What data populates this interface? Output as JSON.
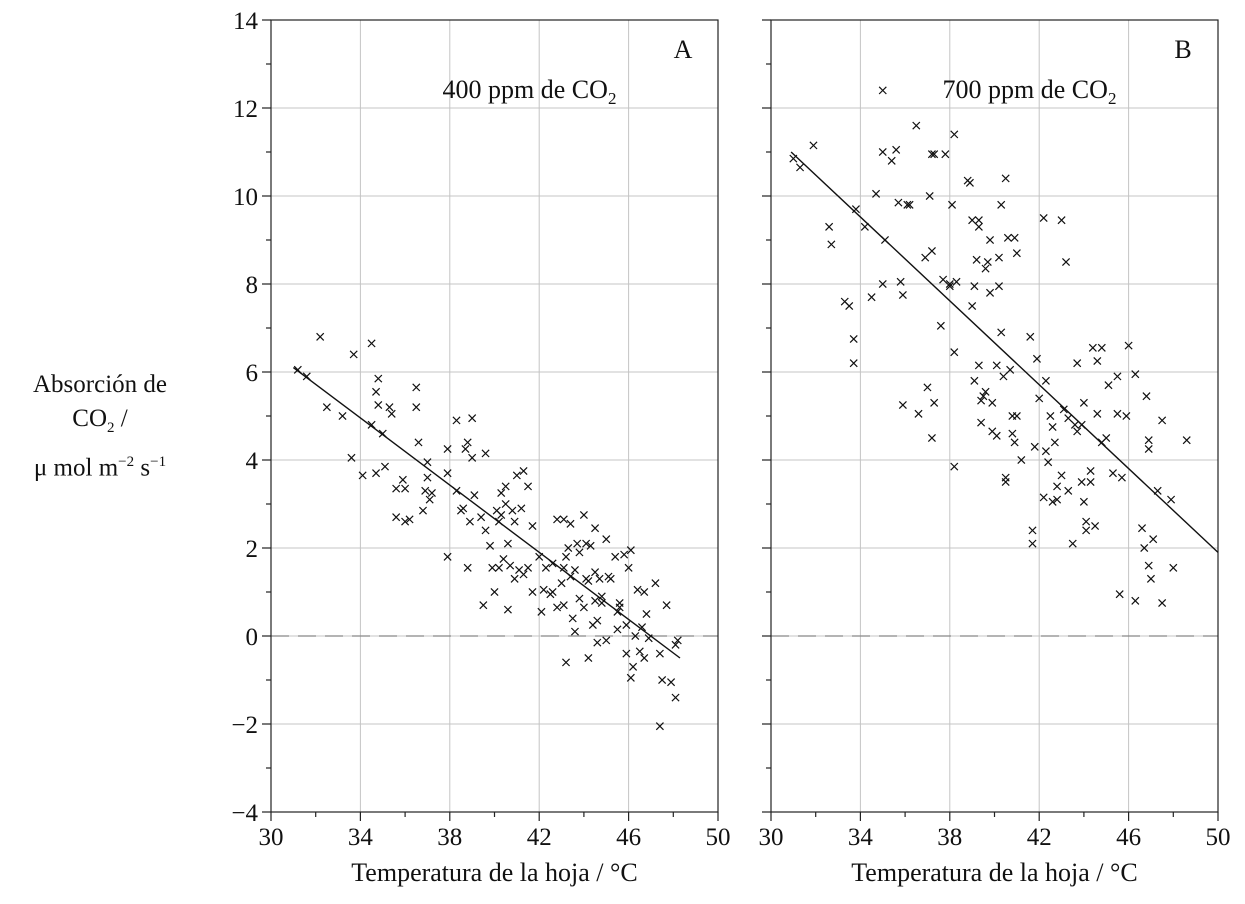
{
  "y_axis_label": {
    "line1": "Absorción de",
    "line2_prefix": "CO",
    "line2_sub": "2",
    "line2_suffix": " /",
    "line3_prefix": "μ mol m",
    "line3_sup1": "−2",
    "line3_mid": " s",
    "line3_sup2": "−1"
  },
  "chart_data": [
    {
      "type": "scatter",
      "panel": "A",
      "annotation": "400 ppm de CO2",
      "annotation_prefix": "400 ppm de CO",
      "annotation_sub": "2",
      "xlabel": "Temperatura de la hoja / °C",
      "ylabel": "Absorción de CO2 / μ mol m−2 s−1",
      "xlim": [
        30,
        50
      ],
      "ylim": [
        -4,
        14
      ],
      "xticks": [
        30,
        34,
        38,
        42,
        46,
        50
      ],
      "yticks": [
        -4,
        -2,
        0,
        2,
        4,
        6,
        8,
        10,
        12,
        14
      ],
      "xtick_labels": [
        "30",
        "34",
        "38",
        "42",
        "46",
        "50"
      ],
      "ytick_labels": [
        "−4",
        "−2",
        "0",
        "2",
        "4",
        "6",
        "8",
        "10",
        "12",
        "14"
      ],
      "grid": true,
      "zero_line": 0,
      "marker": "x",
      "trend_line": {
        "x": [
          31.0,
          48.3
        ],
        "y": [
          6.1,
          -0.5
        ]
      },
      "points": [
        [
          31.2,
          6.05
        ],
        [
          31.6,
          5.9
        ],
        [
          32.2,
          6.8
        ],
        [
          32.5,
          5.2
        ],
        [
          33.2,
          5.0
        ],
        [
          33.7,
          6.4
        ],
        [
          33.6,
          4.05
        ],
        [
          34.1,
          3.65
        ],
        [
          34.5,
          6.65
        ],
        [
          34.5,
          4.8
        ],
        [
          34.8,
          5.85
        ],
        [
          34.7,
          5.55
        ],
        [
          34.8,
          5.25
        ],
        [
          35.0,
          4.6
        ],
        [
          35.1,
          3.85
        ],
        [
          35.3,
          5.2
        ],
        [
          35.4,
          5.05
        ],
        [
          34.7,
          3.7
        ],
        [
          35.6,
          2.7
        ],
        [
          35.6,
          3.35
        ],
        [
          35.9,
          3.55
        ],
        [
          36.0,
          2.6
        ],
        [
          36.0,
          3.35
        ],
        [
          36.2,
          2.65
        ],
        [
          36.5,
          5.65
        ],
        [
          36.5,
          5.2
        ],
        [
          36.6,
          4.4
        ],
        [
          36.8,
          2.85
        ],
        [
          37.0,
          3.95
        ],
        [
          37.0,
          3.6
        ],
        [
          37.1,
          3.1
        ],
        [
          37.2,
          3.25
        ],
        [
          37.9,
          4.25
        ],
        [
          37.9,
          3.7
        ],
        [
          37.9,
          1.8
        ],
        [
          38.3,
          4.9
        ],
        [
          38.3,
          3.3
        ],
        [
          38.5,
          2.85
        ],
        [
          38.7,
          4.25
        ],
        [
          38.8,
          4.4
        ],
        [
          38.9,
          2.6
        ],
        [
          38.8,
          1.55
        ],
        [
          39.0,
          4.95
        ],
        [
          39.0,
          4.05
        ],
        [
          39.1,
          3.2
        ],
        [
          39.4,
          2.7
        ],
        [
          39.6,
          4.15
        ],
        [
          39.6,
          2.4
        ],
        [
          39.5,
          0.7
        ],
        [
          39.8,
          2.05
        ],
        [
          39.9,
          1.55
        ],
        [
          40.0,
          1.0
        ],
        [
          40.1,
          2.85
        ],
        [
          40.2,
          1.55
        ],
        [
          40.2,
          2.6
        ],
        [
          40.3,
          3.25
        ],
        [
          40.4,
          1.75
        ],
        [
          40.5,
          3.0
        ],
        [
          40.5,
          3.4
        ],
        [
          40.6,
          2.1
        ],
        [
          40.6,
          0.6
        ],
        [
          40.7,
          1.6
        ],
        [
          40.8,
          2.85
        ],
        [
          40.9,
          1.3
        ],
        [
          40.9,
          2.6
        ],
        [
          41.0,
          3.65
        ],
        [
          41.1,
          1.5
        ],
        [
          41.2,
          2.9
        ],
        [
          41.3,
          3.75
        ],
        [
          41.3,
          1.4
        ],
        [
          41.5,
          1.55
        ],
        [
          41.5,
          3.4
        ],
        [
          41.7,
          2.5
        ],
        [
          41.7,
          1.0
        ],
        [
          42.0,
          1.8
        ],
        [
          42.1,
          0.55
        ],
        [
          42.2,
          1.05
        ],
        [
          42.3,
          1.55
        ],
        [
          42.5,
          0.95
        ],
        [
          42.6,
          1.65
        ],
        [
          42.8,
          2.65
        ],
        [
          42.8,
          0.65
        ],
        [
          43.0,
          1.2
        ],
        [
          43.1,
          2.65
        ],
        [
          43.1,
          1.55
        ],
        [
          43.1,
          0.7
        ],
        [
          43.2,
          1.8
        ],
        [
          43.2,
          -0.6
        ],
        [
          43.3,
          2.0
        ],
        [
          43.4,
          2.55
        ],
        [
          43.4,
          1.35
        ],
        [
          43.5,
          0.4
        ],
        [
          43.6,
          0.1
        ],
        [
          43.6,
          1.5
        ],
        [
          43.7,
          2.1
        ],
        [
          43.8,
          0.85
        ],
        [
          43.8,
          1.9
        ],
        [
          44.0,
          2.75
        ],
        [
          44.0,
          0.65
        ],
        [
          44.1,
          1.3
        ],
        [
          44.1,
          2.1
        ],
        [
          44.2,
          1.25
        ],
        [
          44.2,
          -0.5
        ],
        [
          44.3,
          2.05
        ],
        [
          44.4,
          0.25
        ],
        [
          44.5,
          1.45
        ],
        [
          44.5,
          0.8
        ],
        [
          44.5,
          2.45
        ],
        [
          44.6,
          0.35
        ],
        [
          44.6,
          -0.15
        ],
        [
          44.7,
          1.3
        ],
        [
          44.8,
          0.75
        ],
        [
          45.0,
          2.2
        ],
        [
          45.0,
          -0.1
        ],
        [
          45.2,
          1.3
        ],
        [
          45.4,
          1.8
        ],
        [
          45.5,
          0.55
        ],
        [
          45.5,
          0.15
        ],
        [
          45.6,
          0.75
        ],
        [
          45.6,
          0.65
        ],
        [
          45.8,
          1.85
        ],
        [
          45.9,
          -0.4
        ],
        [
          45.9,
          0.25
        ],
        [
          46.0,
          1.55
        ],
        [
          46.1,
          -0.95
        ],
        [
          46.1,
          1.95
        ],
        [
          46.2,
          -0.7
        ],
        [
          46.3,
          0.0
        ],
        [
          46.4,
          1.05
        ],
        [
          46.5,
          -0.35
        ],
        [
          46.6,
          0.2
        ],
        [
          46.7,
          1.0
        ],
        [
          46.7,
          -0.5
        ],
        [
          46.9,
          -0.05
        ],
        [
          47.2,
          1.2
        ],
        [
          47.4,
          -2.05
        ],
        [
          47.5,
          -1.0
        ],
        [
          47.7,
          0.7
        ],
        [
          47.9,
          -1.05
        ],
        [
          48.1,
          -1.4
        ],
        [
          48.1,
          -0.2
        ],
        [
          48.2,
          -0.1
        ],
        [
          47.4,
          -0.4
        ],
        [
          45.1,
          1.35
        ],
        [
          42.6,
          1.0
        ],
        [
          40.3,
          2.75
        ],
        [
          38.6,
          2.9
        ],
        [
          36.9,
          3.3
        ],
        [
          44.8,
          0.9
        ],
        [
          46.8,
          0.5
        ]
      ]
    },
    {
      "type": "scatter",
      "panel": "B",
      "annotation": "700 ppm de CO2",
      "annotation_prefix": "700 ppm de CO",
      "annotation_sub": "2",
      "xlabel": "Temperatura de la hoja / °C",
      "ylabel": "",
      "xlim": [
        30,
        50
      ],
      "ylim": [
        -4,
        14
      ],
      "xticks": [
        30,
        34,
        38,
        42,
        46,
        50
      ],
      "yticks": [
        -4,
        -2,
        0,
        2,
        4,
        6,
        8,
        10,
        12,
        14
      ],
      "xtick_labels": [
        "30",
        "34",
        "38",
        "42",
        "46",
        "50"
      ],
      "grid": true,
      "zero_line": 0,
      "marker": "x",
      "trend_line": {
        "x": [
          30.9,
          50.0
        ],
        "y": [
          11.0,
          1.9
        ]
      },
      "points": [
        [
          31.0,
          10.85
        ],
        [
          31.3,
          10.65
        ],
        [
          31.9,
          11.15
        ],
        [
          32.6,
          9.3
        ],
        [
          32.7,
          8.9
        ],
        [
          33.3,
          7.6
        ],
        [
          33.5,
          7.5
        ],
        [
          33.7,
          6.75
        ],
        [
          33.7,
          6.2
        ],
        [
          33.8,
          9.7
        ],
        [
          34.2,
          9.3
        ],
        [
          34.5,
          7.7
        ],
        [
          34.7,
          10.05
        ],
        [
          35.0,
          12.4
        ],
        [
          35.0,
          11.0
        ],
        [
          35.1,
          9.0
        ],
        [
          35.0,
          8.0
        ],
        [
          35.4,
          10.8
        ],
        [
          35.6,
          11.05
        ],
        [
          35.7,
          9.85
        ],
        [
          35.8,
          8.05
        ],
        [
          35.9,
          5.25
        ],
        [
          35.9,
          7.75
        ],
        [
          36.1,
          9.8
        ],
        [
          36.2,
          9.8
        ],
        [
          36.5,
          11.6
        ],
        [
          36.6,
          5.05
        ],
        [
          36.9,
          8.6
        ],
        [
          37.1,
          10.0
        ],
        [
          37.0,
          5.65
        ],
        [
          37.2,
          8.75
        ],
        [
          37.2,
          10.95
        ],
        [
          37.3,
          10.95
        ],
        [
          37.3,
          5.3
        ],
        [
          37.2,
          4.5
        ],
        [
          37.6,
          7.05
        ],
        [
          37.7,
          8.1
        ],
        [
          37.8,
          10.95
        ],
        [
          38.0,
          7.95
        ],
        [
          38.0,
          8.0
        ],
        [
          38.1,
          9.8
        ],
        [
          38.2,
          11.4
        ],
        [
          38.2,
          6.45
        ],
        [
          38.2,
          3.85
        ],
        [
          38.3,
          8.05
        ],
        [
          38.8,
          10.35
        ],
        [
          38.9,
          10.3
        ],
        [
          39.0,
          9.45
        ],
        [
          39.0,
          7.5
        ],
        [
          39.1,
          7.95
        ],
        [
          39.1,
          5.8
        ],
        [
          39.2,
          8.55
        ],
        [
          39.3,
          9.45
        ],
        [
          39.3,
          9.3
        ],
        [
          39.3,
          6.15
        ],
        [
          39.4,
          4.85
        ],
        [
          39.5,
          5.45
        ],
        [
          39.4,
          5.35
        ],
        [
          39.6,
          8.35
        ],
        [
          39.6,
          5.55
        ],
        [
          39.7,
          8.5
        ],
        [
          39.8,
          9.0
        ],
        [
          39.8,
          7.8
        ],
        [
          39.9,
          5.3
        ],
        [
          39.9,
          4.65
        ],
        [
          40.1,
          6.15
        ],
        [
          40.1,
          4.55
        ],
        [
          40.2,
          8.6
        ],
        [
          40.2,
          7.95
        ],
        [
          40.3,
          9.8
        ],
        [
          40.3,
          6.9
        ],
        [
          40.4,
          5.9
        ],
        [
          40.5,
          10.4
        ],
        [
          40.5,
          3.5
        ],
        [
          40.5,
          3.6
        ],
        [
          40.6,
          9.05
        ],
        [
          40.7,
          6.05
        ],
        [
          40.8,
          5.0
        ],
        [
          40.8,
          4.6
        ],
        [
          40.9,
          9.05
        ],
        [
          40.9,
          4.4
        ],
        [
          41.0,
          8.7
        ],
        [
          41.0,
          5.0
        ],
        [
          41.2,
          4.0
        ],
        [
          41.6,
          6.8
        ],
        [
          41.7,
          2.4
        ],
        [
          41.7,
          2.1
        ],
        [
          41.8,
          4.3
        ],
        [
          41.9,
          6.3
        ],
        [
          42.0,
          5.4
        ],
        [
          42.2,
          9.5
        ],
        [
          42.2,
          3.15
        ],
        [
          42.3,
          5.8
        ],
        [
          42.3,
          4.2
        ],
        [
          42.4,
          3.95
        ],
        [
          42.5,
          5.0
        ],
        [
          42.6,
          4.75
        ],
        [
          42.6,
          3.05
        ],
        [
          42.7,
          4.4
        ],
        [
          42.8,
          3.1
        ],
        [
          42.8,
          3.4
        ],
        [
          43.0,
          9.45
        ],
        [
          43.0,
          3.65
        ],
        [
          43.1,
          5.15
        ],
        [
          43.2,
          8.5
        ],
        [
          43.3,
          4.95
        ],
        [
          43.3,
          3.3
        ],
        [
          43.5,
          2.1
        ],
        [
          43.6,
          4.8
        ],
        [
          43.7,
          6.2
        ],
        [
          43.7,
          4.65
        ],
        [
          43.9,
          3.5
        ],
        [
          44.0,
          5.3
        ],
        [
          44.0,
          3.05
        ],
        [
          44.1,
          2.6
        ],
        [
          44.1,
          2.4
        ],
        [
          44.3,
          3.5
        ],
        [
          44.3,
          3.75
        ],
        [
          44.4,
          6.55
        ],
        [
          44.5,
          2.5
        ],
        [
          44.6,
          6.25
        ],
        [
          44.6,
          5.05
        ],
        [
          44.8,
          6.55
        ],
        [
          44.8,
          4.4
        ],
        [
          45.0,
          4.5
        ],
        [
          45.1,
          5.7
        ],
        [
          45.3,
          3.7
        ],
        [
          45.5,
          5.05
        ],
        [
          45.5,
          5.9
        ],
        [
          45.6,
          0.95
        ],
        [
          45.7,
          3.6
        ],
        [
          45.9,
          5.0
        ],
        [
          46.0,
          6.6
        ],
        [
          46.3,
          0.8
        ],
        [
          46.3,
          5.95
        ],
        [
          46.6,
          2.45
        ],
        [
          46.7,
          2.0
        ],
        [
          46.8,
          5.45
        ],
        [
          46.9,
          4.45
        ],
        [
          46.9,
          1.6
        ],
        [
          46.9,
          4.25
        ],
        [
          47.0,
          1.3
        ],
        [
          47.1,
          2.2
        ],
        [
          47.3,
          3.3
        ],
        [
          47.5,
          4.9
        ],
        [
          47.5,
          0.75
        ],
        [
          47.9,
          3.1
        ],
        [
          48.0,
          1.55
        ],
        [
          48.6,
          4.45
        ],
        [
          43.9,
          4.8
        ]
      ]
    }
  ]
}
